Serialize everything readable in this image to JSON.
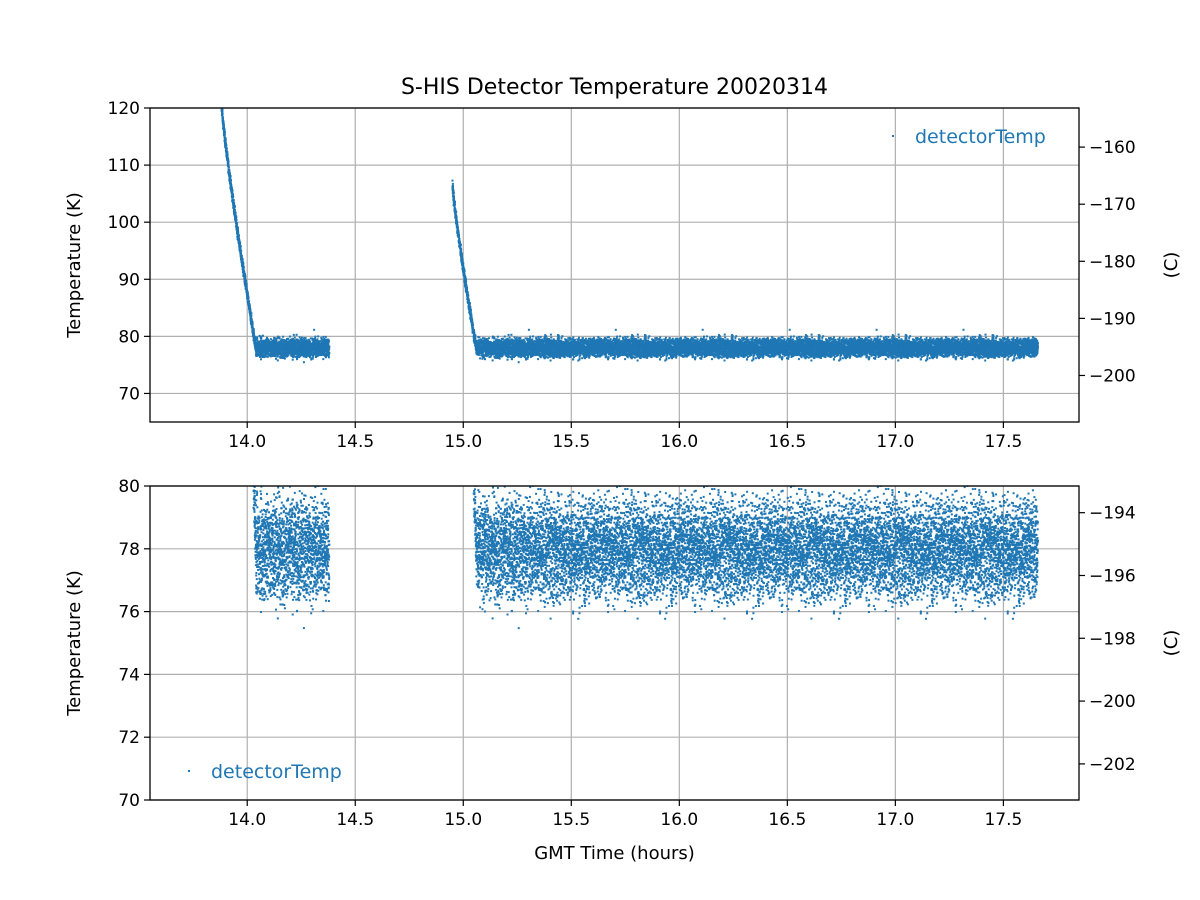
{
  "chart_data": [
    {
      "type": "scatter",
      "title": "S-HIS Detector Temperature 20020314",
      "xlabel": "",
      "ylabel": "Temperature (K)",
      "y2label": "(C)",
      "xlim": [
        13.55,
        17.85
      ],
      "ylim": [
        65,
        120
      ],
      "y2lim": [
        -208.15,
        -153.15
      ],
      "xticks": [
        14.0,
        14.5,
        15.0,
        15.5,
        16.0,
        16.5,
        17.0,
        17.5
      ],
      "xtick_labels": [
        "14.0",
        "14.5",
        "15.0",
        "15.5",
        "16.0",
        "16.5",
        "17.0",
        "17.5"
      ],
      "yticks": [
        70,
        80,
        90,
        100,
        110,
        120
      ],
      "ytick_labels": [
        "70",
        "80",
        "90",
        "100",
        "110",
        "120"
      ],
      "y2ticks": [
        -200,
        -190,
        -180,
        -170,
        -160
      ],
      "y2tick_labels": [
        "−200",
        "−190",
        "−180",
        "−170",
        "−160"
      ],
      "grid": true,
      "legend_position": "upper-right",
      "series": [
        {
          "name": "detectorTemp",
          "color": "#1f77b4",
          "segments": [
            {
              "t_start": 13.88,
              "t_end": 14.38,
              "start_value": 121,
              "plateau_value": 78,
              "plateau_time": 14.04,
              "plateau_noise": 0.8
            },
            {
              "t_start": 14.95,
              "t_end": 17.66,
              "start_value": 106.5,
              "plateau_value": 78,
              "plateau_time": 15.06,
              "plateau_noise": 0.8
            }
          ]
        }
      ]
    },
    {
      "type": "scatter",
      "title": "",
      "xlabel": "GMT Time (hours)",
      "ylabel": "Temperature (K)",
      "y2label": "(C)",
      "xlim": [
        13.55,
        17.85
      ],
      "ylim": [
        70,
        80
      ],
      "y2lim": [
        -203.15,
        -193.15
      ],
      "xticks": [
        14.0,
        14.5,
        15.0,
        15.5,
        16.0,
        16.5,
        17.0,
        17.5
      ],
      "xtick_labels": [
        "14.0",
        "14.5",
        "15.0",
        "15.5",
        "16.0",
        "16.5",
        "17.0",
        "17.5"
      ],
      "yticks": [
        70,
        72,
        74,
        76,
        78,
        80
      ],
      "ytick_labels": [
        "70",
        "72",
        "74",
        "76",
        "78",
        "80"
      ],
      "y2ticks": [
        -202,
        -200,
        -198,
        -196,
        -194
      ],
      "y2tick_labels": [
        "−202",
        "−200",
        "−198",
        "−196",
        "−194"
      ],
      "grid": true,
      "legend_position": "lower-left",
      "series": [
        {
          "name": "detectorTemp",
          "color": "#1f77b4",
          "segments": [
            {
              "t_start": 13.88,
              "t_end": 14.38,
              "start_value": 121,
              "plateau_value": 78,
              "plateau_time": 14.04,
              "plateau_noise": 0.8
            },
            {
              "t_start": 14.95,
              "t_end": 17.66,
              "start_value": 106.5,
              "plateau_value": 78,
              "plateau_time": 15.06,
              "plateau_noise": 0.8
            }
          ]
        }
      ]
    }
  ]
}
